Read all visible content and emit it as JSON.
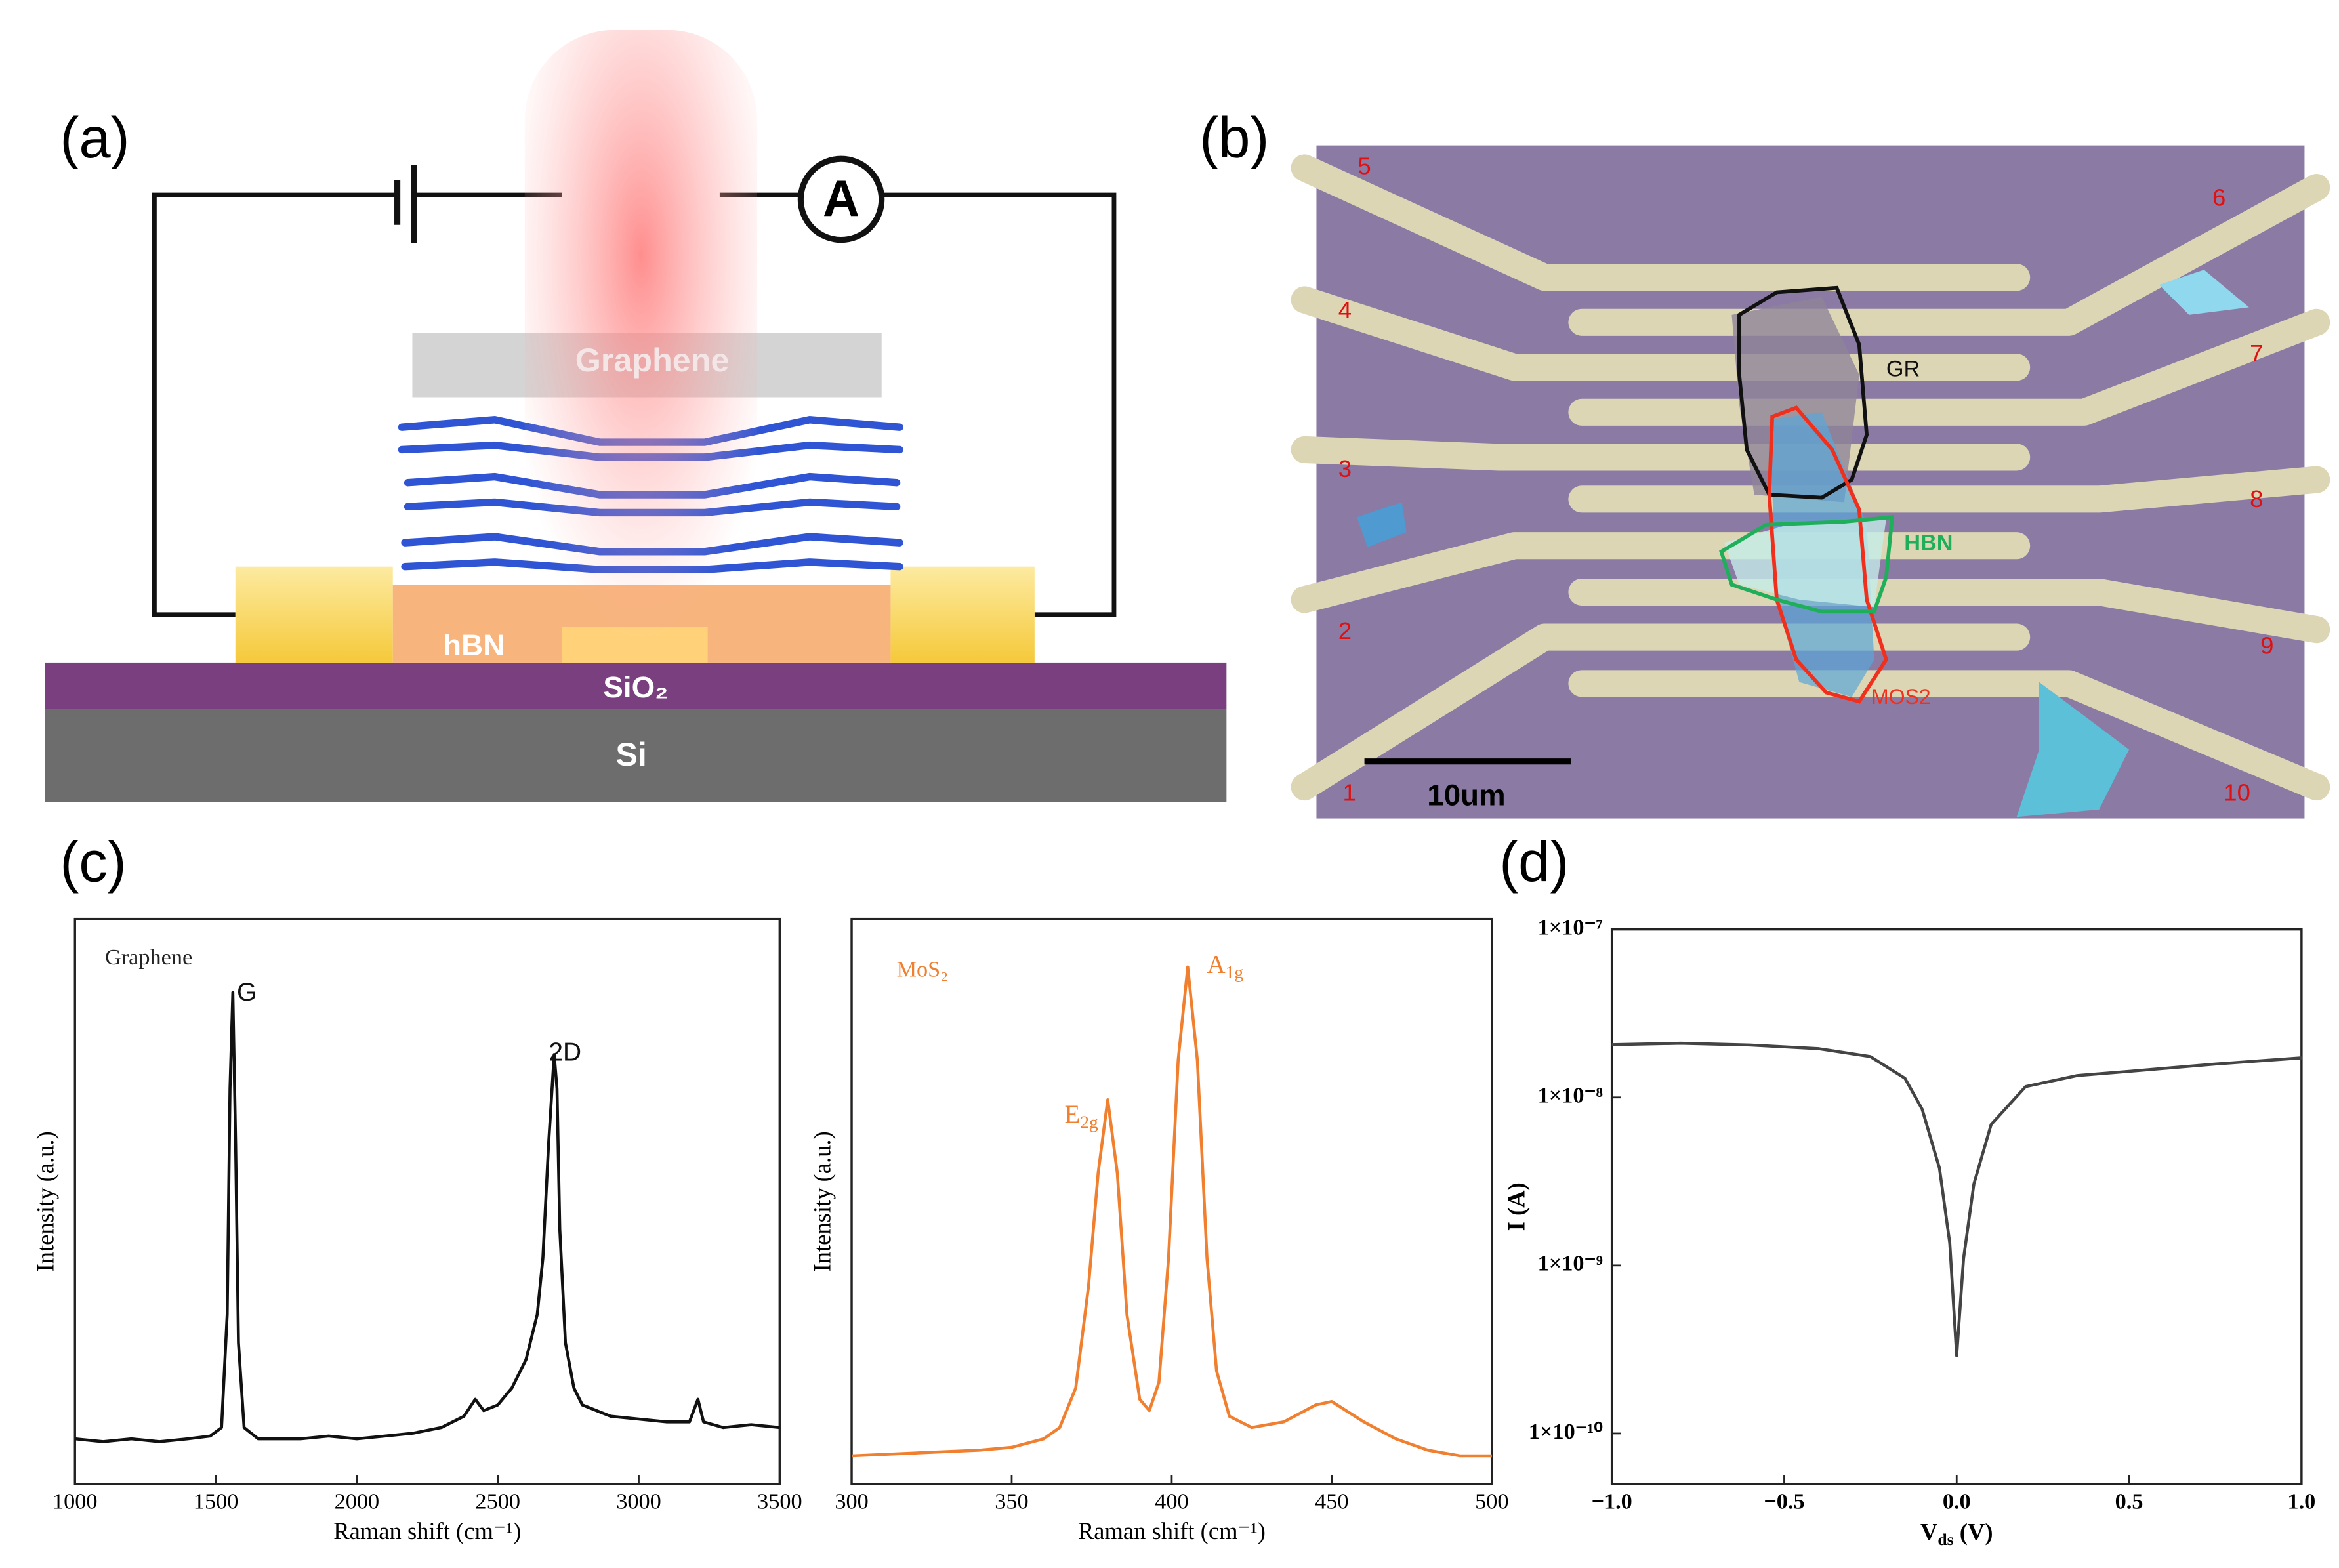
{
  "panel_labels": [
    "(a)",
    "(b)",
    "(c)",
    "(d)"
  ],
  "diagram_a": {
    "meter": "A",
    "top_layer": "Graphene",
    "middle_layer": "hBN",
    "oxide": "SiO₂",
    "substrate": "Si"
  },
  "micrograph_b": {
    "electrodes": [
      "1",
      "2",
      "3",
      "4",
      "5",
      "6",
      "7",
      "8",
      "9",
      "10"
    ],
    "flakes": [
      {
        "name": "GR",
        "color": "#111111"
      },
      {
        "name": "HBN",
        "color": "#1fae5a"
      },
      {
        "name": "MOS2",
        "color": "#f0301c"
      }
    ],
    "scale_bar": "10um"
  },
  "chart_data": [
    {
      "type": "line",
      "title": "Graphene",
      "x_label": "Raman shift (cm⁻¹)",
      "y_label": "Intensity (a.u.)",
      "xlim": [
        1000,
        3500
      ],
      "xticks": [
        1000,
        1500,
        2000,
        2500,
        3000,
        3500
      ],
      "ylim": [
        0,
        100
      ],
      "annotations": [
        {
          "text": "G"
        },
        {
          "text": "2D"
        }
      ],
      "x": [
        1000,
        1100,
        1200,
        1300,
        1400,
        1480,
        1520,
        1540,
        1550,
        1560,
        1570,
        1580,
        1600,
        1650,
        1800,
        1900,
        2000,
        2100,
        2200,
        2300,
        2380,
        2420,
        2450,
        2500,
        2550,
        2600,
        2640,
        2660,
        2680,
        2700,
        2710,
        2720,
        2740,
        2770,
        2800,
        2900,
        3000,
        3100,
        3180,
        3210,
        3230,
        3300,
        3400,
        3500
      ],
      "series": [
        {
          "name": "Graphene",
          "color": "#111111",
          "values": [
            8,
            7.5,
            8,
            7.5,
            8,
            8.5,
            10,
            30,
            70,
            87,
            60,
            25,
            10,
            8,
            8,
            8.5,
            8,
            8.5,
            9,
            10,
            12,
            15,
            13,
            14,
            17,
            22,
            30,
            40,
            60,
            76,
            70,
            45,
            25,
            17,
            14,
            12,
            11.5,
            11,
            11,
            15,
            11,
            10,
            10.5,
            10
          ]
        }
      ]
    },
    {
      "type": "line",
      "title": "MoS₂",
      "x_label": "Raman shift (cm⁻¹)",
      "y_label": "Intensity (a.u.)",
      "xlim": [
        300,
        500
      ],
      "xticks": [
        300,
        350,
        400,
        450,
        500
      ],
      "ylim": [
        0,
        100
      ],
      "annotations": [
        {
          "text": "E",
          "sub": "2g"
        },
        {
          "text": "A",
          "sub": "1g"
        }
      ],
      "x": [
        300,
        320,
        340,
        350,
        360,
        365,
        370,
        374,
        377,
        380,
        383,
        386,
        390,
        393,
        396,
        399,
        402,
        405,
        408,
        411,
        414,
        418,
        425,
        435,
        445,
        450,
        460,
        470,
        480,
        490,
        500
      ],
      "series": [
        {
          "name": "MoS₂",
          "color": "#f08030",
          "values": [
            5,
            5.5,
            6,
            6.5,
            8,
            10,
            17,
            35,
            55,
            68,
            55,
            30,
            15,
            13,
            18,
            40,
            75,
            91.5,
            75,
            40,
            20,
            12,
            10,
            11,
            14,
            14.6,
            11,
            8,
            6,
            5,
            5
          ]
        }
      ]
    },
    {
      "type": "line",
      "log_y": true,
      "y_label": "I (A)",
      "x_label": {
        "text": "V",
        "sub": "ds",
        "rest": " (V)"
      },
      "xlim": [
        -1,
        1
      ],
      "xticks": [
        {
          "value": -1,
          "label": "−1.0"
        },
        {
          "value": -0.5,
          "label": "−0.5"
        },
        {
          "value": 0,
          "label": "0.0"
        },
        {
          "value": 0.5,
          "label": "0.5"
        },
        {
          "value": 1,
          "label": "1.0"
        }
      ],
      "ylim": [
        5e-11,
        1e-07
      ],
      "yticks": [
        {
          "value": 1e-10,
          "label": "1×10⁻¹⁰"
        },
        {
          "value": 1e-09,
          "label": "1×10⁻⁹"
        },
        {
          "value": 1e-08,
          "label": "1×10⁻⁸"
        },
        {
          "value": 1e-07,
          "label": "1×10⁻⁷"
        }
      ],
      "x": [
        -1,
        -0.8,
        -0.6,
        -0.4,
        -0.25,
        -0.15,
        -0.1,
        -0.05,
        -0.02,
        0,
        0.02,
        0.05,
        0.1,
        0.2,
        0.35,
        0.5,
        0.75,
        1
      ],
      "series": [
        {
          "name": "I",
          "color": "#444444",
          "values": [
            2.06e-08,
            2.1e-08,
            2.05e-08,
            1.95e-08,
            1.75e-08,
            1.3e-08,
            8.5e-09,
            3.8e-09,
            1.36e-09,
            2.9e-10,
            1.1e-09,
            3.06e-09,
            6.9e-09,
            1.16e-08,
            1.35e-08,
            1.43e-08,
            1.58e-08,
            1.72e-08
          ]
        }
      ]
    }
  ]
}
